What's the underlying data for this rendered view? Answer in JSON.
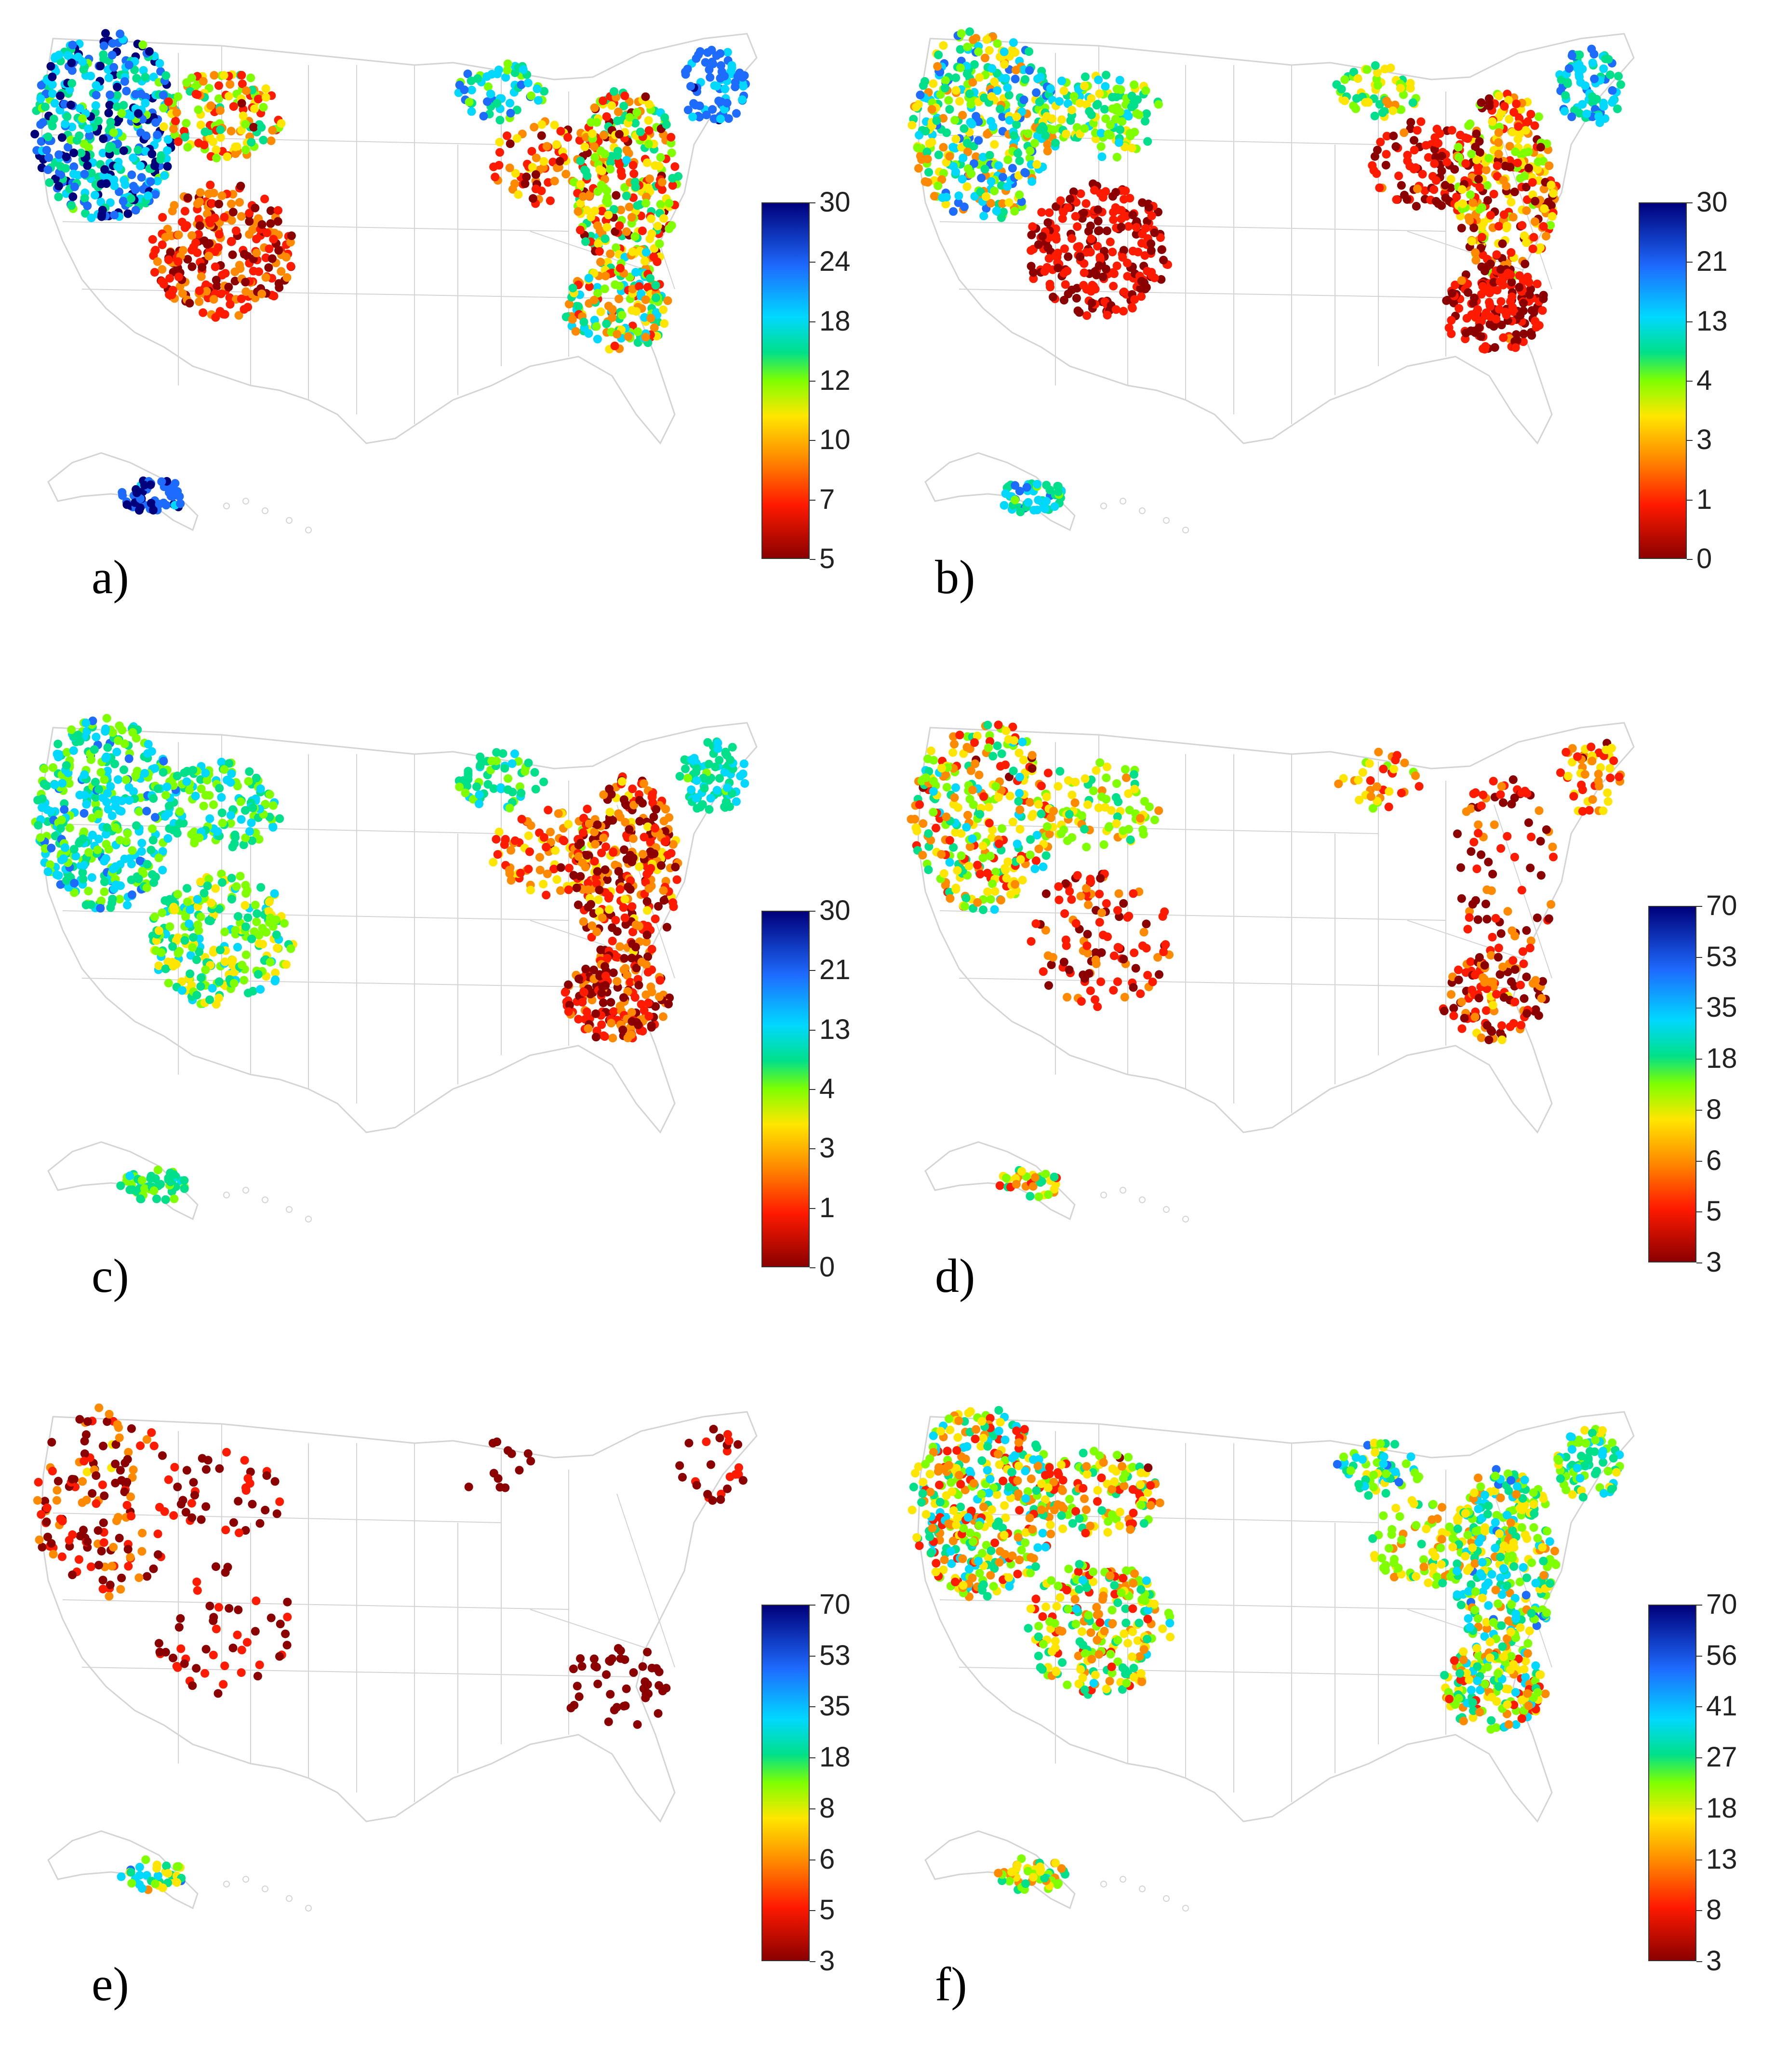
{
  "panels": [
    {
      "label": "a)",
      "scale": [
        "30",
        "24",
        "18",
        "12",
        "10",
        "7",
        "5"
      ],
      "profile": "a"
    },
    {
      "label": "b)",
      "scale": [
        "30",
        "21",
        "13",
        "4",
        "3",
        "1",
        "0"
      ],
      "profile": "b"
    },
    {
      "label": "c)",
      "scale": [
        "30",
        "21",
        "13",
        "4",
        "3",
        "1",
        "0"
      ],
      "profile": "c"
    },
    {
      "label": "d)",
      "scale": [
        "70",
        "53",
        "35",
        "18",
        "8",
        "6",
        "5",
        "3"
      ],
      "profile": "d"
    },
    {
      "label": "e)",
      "scale": [
        "70",
        "53",
        "35",
        "18",
        "8",
        "6",
        "5",
        "3"
      ],
      "profile": "e"
    },
    {
      "label": "f)",
      "scale": [
        "70",
        "56",
        "41",
        "27",
        "18",
        "13",
        "8",
        "3"
      ],
      "profile": "f"
    }
  ],
  "colors": {
    "ramp": [
      "#8b0000",
      "#ff1a00",
      "#ff8a00",
      "#ffe600",
      "#7fff00",
      "#00e08a",
      "#00d8ff",
      "#1e6cff",
      "#00007a"
    ],
    "state_border": "#d4d4d4"
  }
}
